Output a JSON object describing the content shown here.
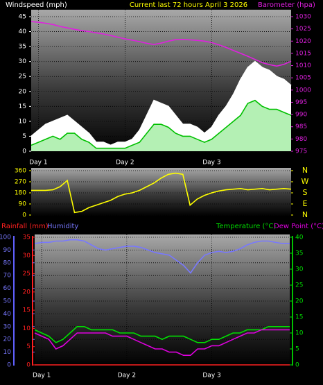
{
  "chart_data": [
    {
      "type": "line",
      "title": "Current last 72 hours April 3 2026",
      "x": [
        0,
        2,
        4,
        6,
        8,
        10,
        12,
        14,
        16,
        18,
        20,
        22,
        24,
        26,
        28,
        30,
        32,
        34,
        36,
        38,
        40,
        42,
        44,
        46,
        48,
        50,
        52,
        54,
        56,
        58,
        60,
        62,
        64,
        66,
        68,
        70,
        72
      ],
      "xlim": [
        0,
        72
      ],
      "xticks": [
        {
          "value": 2,
          "label": "Day 1"
        },
        {
          "value": 26,
          "label": "Day 2"
        },
        {
          "value": 50,
          "label": "Day 3"
        }
      ],
      "ylim": [
        0,
        45
      ],
      "yticks": [
        0,
        5,
        10,
        15,
        20,
        25,
        30,
        35,
        40,
        45
      ],
      "y2lim": [
        975,
        1030
      ],
      "y2ticks": [
        975,
        980,
        985,
        990,
        995,
        1000,
        1005,
        1010,
        1015,
        1020,
        1025,
        1030
      ],
      "grid": true,
      "series": [
        {
          "color": "#ffffff",
          "area": true,
          "values": [
            5,
            7,
            9,
            10,
            11,
            12,
            10,
            8,
            6,
            3,
            3,
            2,
            3,
            3,
            4,
            7,
            12,
            17,
            16,
            15,
            12,
            9,
            9,
            8,
            6,
            8,
            12,
            15,
            19,
            24,
            28,
            30,
            28,
            27,
            25,
            24,
            22
          ]
        },
        {
          "name": "Windspeed (mph)",
          "color": "#00c000",
          "area": true,
          "fill_color": "#b4f0b4",
          "values": [
            2,
            3,
            4,
            5,
            4,
            6,
            6,
            4,
            3,
            1,
            1,
            1,
            1,
            1,
            2,
            3,
            6,
            9,
            9,
            8,
            6,
            5,
            5,
            4,
            3,
            4,
            6,
            8,
            10,
            12,
            16,
            17,
            15,
            14,
            14,
            13,
            12
          ]
        },
        {
          "name": "Barometer (hpa)",
          "color": "#e020e0",
          "axis": "y2",
          "values": [
            1028,
            1027.7,
            1027.3,
            1026.8,
            1026,
            1025.4,
            1024.8,
            1024.3,
            1023.9,
            1023.4,
            1022.9,
            1022.3,
            1021.6,
            1020.9,
            1020.4,
            1019.8,
            1019.1,
            1018.6,
            1019.2,
            1020,
            1020.6,
            1020.7,
            1020.5,
            1020.3,
            1020,
            1019.4,
            1018.5,
            1017.4,
            1016.2,
            1015,
            1013.8,
            1012.5,
            1011.2,
            1010.4,
            1009.8,
            1010.5,
            1011.8
          ]
        }
      ]
    },
    {
      "type": "line",
      "x": [
        0,
        2,
        4,
        6,
        8,
        10,
        12,
        14,
        16,
        18,
        20,
        22,
        24,
        26,
        28,
        30,
        32,
        34,
        36,
        38,
        40,
        42,
        44,
        46,
        48,
        50,
        52,
        54,
        56,
        58,
        60,
        62,
        64,
        66,
        68,
        70,
        72
      ],
      "xlim": [
        0,
        72
      ],
      "ylim": [
        0,
        360
      ],
      "yticks": [
        0,
        90,
        180,
        270,
        360
      ],
      "y2lim": [
        0,
        360
      ],
      "y2ticks": [
        {
          "value": 0,
          "label": "N"
        },
        {
          "value": 90,
          "label": "E"
        },
        {
          "value": 180,
          "label": "S"
        },
        {
          "value": 270,
          "label": "W"
        },
        {
          "value": 360,
          "label": "N"
        }
      ],
      "grid": true,
      "series": [
        {
          "color": "#ffff00",
          "values": [
            200,
            200,
            200,
            205,
            230,
            280,
            20,
            30,
            60,
            80,
            100,
            120,
            150,
            170,
            180,
            200,
            230,
            260,
            300,
            330,
            340,
            330,
            80,
            130,
            160,
            180,
            195,
            205,
            210,
            215,
            205,
            210,
            215,
            205,
            210,
            215,
            210
          ]
        }
      ]
    },
    {
      "type": "line",
      "x": [
        0,
        2,
        4,
        6,
        8,
        10,
        12,
        14,
        16,
        18,
        20,
        22,
        24,
        26,
        28,
        30,
        32,
        34,
        36,
        38,
        40,
        42,
        44,
        46,
        48,
        50,
        52,
        54,
        56,
        58,
        60,
        62,
        64,
        66,
        68,
        70,
        72
      ],
      "xlim": [
        0,
        72
      ],
      "xticks": [
        {
          "value": 2,
          "label": "Day 1"
        },
        {
          "value": 26,
          "label": "Day 2"
        },
        {
          "value": 50,
          "label": "Day 3"
        }
      ],
      "ylim": [
        0,
        100
      ],
      "yticks": [
        0,
        10,
        20,
        30,
        40,
        50,
        60,
        70,
        80,
        90,
        100
      ],
      "y2lim": [
        0,
        40
      ],
      "y2ticks": [
        0,
        5,
        10,
        15,
        20,
        25,
        30,
        35,
        40
      ],
      "y3lim": [
        0,
        35
      ],
      "y3ticks": [
        0,
        5,
        10,
        15,
        20,
        25,
        30,
        35
      ],
      "grid": true,
      "series": [
        {
          "name": "Rainfall (mm)",
          "color": "#ff2020",
          "axis": "y3",
          "values": [
            0,
            0,
            0,
            0,
            0,
            0,
            0,
            0,
            0,
            0,
            0,
            0,
            0,
            0,
            0,
            0,
            0,
            0,
            0,
            0,
            0,
            0,
            0,
            0,
            0,
            0,
            0,
            0,
            0,
            0,
            0,
            0,
            0,
            0,
            0,
            0,
            0
          ]
        },
        {
          "name": "Humidity",
          "color": "#7878ff",
          "values": [
            95,
            96,
            96,
            97,
            97,
            98,
            98,
            97,
            94,
            91,
            90,
            91,
            92,
            93,
            93,
            92,
            90,
            88,
            87,
            86,
            82,
            78,
            72,
            80,
            86,
            88,
            89,
            88,
            89,
            91,
            94,
            96,
            97,
            97,
            96,
            95,
            95
          ]
        },
        {
          "name": "Temperature (°C)",
          "color": "#00e000",
          "axis": "y2",
          "values": [
            11,
            10,
            9,
            7,
            8,
            10,
            12,
            12,
            11,
            11,
            11,
            11,
            10,
            10,
            10,
            9,
            9,
            9,
            8,
            9,
            9,
            9,
            8,
            7,
            7,
            8,
            8,
            9,
            10,
            10,
            11,
            11,
            11,
            12,
            12,
            12,
            12
          ]
        },
        {
          "name": "Dew Point (°C)",
          "color": "#e000e0",
          "axis": "y2",
          "values": [
            10,
            9,
            8,
            5,
            6,
            8,
            10,
            10,
            10,
            10,
            10,
            9,
            9,
            9,
            8,
            7,
            6,
            5,
            5,
            4,
            4,
            3,
            3,
            5,
            5,
            6,
            6,
            7,
            8,
            9,
            10,
            10,
            11,
            11,
            11,
            11,
            11
          ]
        }
      ]
    }
  ]
}
